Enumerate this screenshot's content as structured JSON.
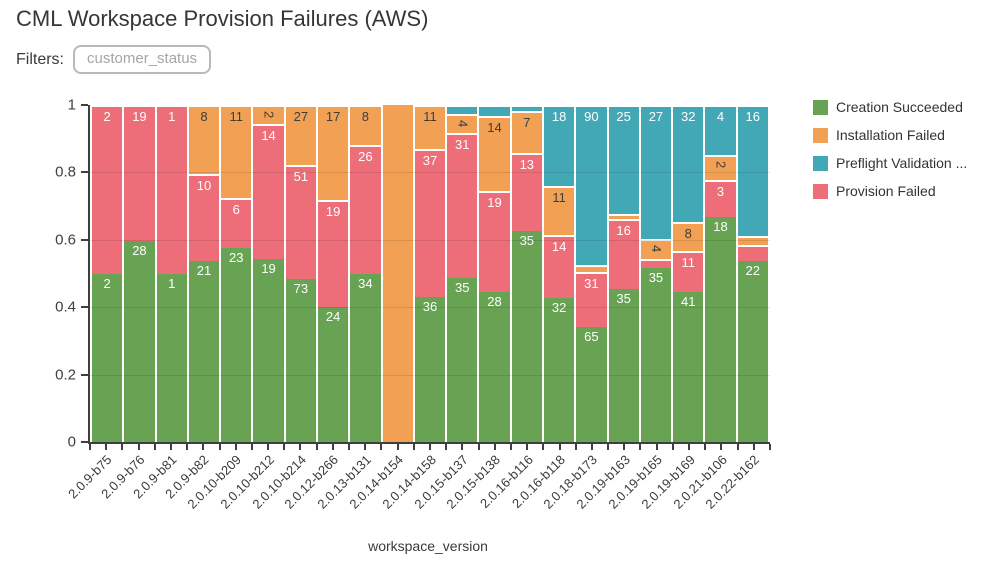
{
  "page": {
    "title": "CML Workspace Provision Failures (AWS)"
  },
  "filters": {
    "label": "Filters:",
    "value": "customer_status"
  },
  "chart_data": {
    "type": "bar",
    "stacked": true,
    "normalized": true,
    "title": "CML Workspace Provision Failures (AWS)",
    "xlabel": "workspace_version",
    "ylabel": "",
    "ylim": [
      0,
      1
    ],
    "grid": true,
    "legend_position": "right",
    "label_dark": "#3d3d3d",
    "label_light": "#ffffff",
    "y_ticks": [
      {
        "value": 0,
        "label": "0"
      },
      {
        "value": 0.2,
        "label": "0.2"
      },
      {
        "value": 0.4,
        "label": "0.4"
      },
      {
        "value": 0.6,
        "label": "0.6"
      },
      {
        "value": 0.8,
        "label": "0.8"
      },
      {
        "value": 1,
        "label": "1"
      }
    ],
    "legend": [
      {
        "key": "creation",
        "name": "Creation Succeeded",
        "color": "#67a353"
      },
      {
        "key": "installation",
        "name": "Installation Failed",
        "color": "#f2a154"
      },
      {
        "key": "preflight",
        "name": "Preflight Validation ...",
        "color": "#43a8b6"
      },
      {
        "key": "provision",
        "name": "Provision Failed",
        "color": "#ed6d78"
      }
    ],
    "series_order_bottom_to_top": [
      "creation",
      "provision",
      "installation",
      "preflight"
    ],
    "categories": [
      "2.0.9-b75",
      "2.0.9-b76",
      "2.0.9-b81",
      "2.0.9-b82",
      "2.0.10-b209",
      "2.0.10-b212",
      "2.0.10-b214",
      "2.0.12-b266",
      "2.0.13-b131",
      "2.0.14-b154",
      "2.0.14-b158",
      "2.0.15-b137",
      "2.0.15-b138",
      "2.0.16-b116",
      "2.0.16-b118",
      "2.0.18-b173",
      "2.0.19-b163",
      "2.0.19-b165",
      "2.0.19-b169",
      "2.0.21-b106",
      "2.0.22-b162"
    ],
    "bars": [
      {
        "version": "2.0.9-b75",
        "segments": [
          {
            "series": "creation",
            "count": 2,
            "frac": 0.5,
            "label": "2"
          },
          {
            "series": "provision",
            "count": 2,
            "frac": 0.5,
            "label": "2"
          }
        ]
      },
      {
        "version": "2.0.9-b76",
        "segments": [
          {
            "series": "creation",
            "count": 28,
            "frac": 0.596,
            "label": "28"
          },
          {
            "series": "provision",
            "count": 19,
            "frac": 0.404,
            "label": "19"
          }
        ]
      },
      {
        "version": "2.0.9-b81",
        "segments": [
          {
            "series": "creation",
            "count": 1,
            "frac": 0.5,
            "label": "1"
          },
          {
            "series": "provision",
            "count": 1,
            "frac": 0.5,
            "label": "1"
          }
        ]
      },
      {
        "version": "2.0.9-b82",
        "segments": [
          {
            "series": "creation",
            "count": 21,
            "frac": 0.538,
            "label": "21"
          },
          {
            "series": "provision",
            "count": 10,
            "frac": 0.256,
            "label": "10"
          },
          {
            "series": "installation",
            "count": 8,
            "frac": 0.205,
            "label": "8"
          }
        ]
      },
      {
        "version": "2.0.10-b209",
        "segments": [
          {
            "series": "creation",
            "count": 23,
            "frac": 0.575,
            "label": "23"
          },
          {
            "series": "provision",
            "count": 6,
            "frac": 0.15,
            "label": "6"
          },
          {
            "series": "installation",
            "count": 11,
            "frac": 0.275,
            "label": "11"
          }
        ]
      },
      {
        "version": "2.0.10-b212",
        "segments": [
          {
            "series": "creation",
            "count": 19,
            "frac": 0.543,
            "label": "19"
          },
          {
            "series": "provision",
            "count": 14,
            "frac": 0.4,
            "label": "14"
          },
          {
            "series": "installation",
            "count": 2,
            "frac": 0.057,
            "label": "2",
            "rotated": true
          }
        ]
      },
      {
        "version": "2.0.10-b214",
        "segments": [
          {
            "series": "creation",
            "count": 73,
            "frac": 0.483,
            "label": "73"
          },
          {
            "series": "provision",
            "count": 51,
            "frac": 0.338,
            "label": "51"
          },
          {
            "series": "installation",
            "count": 27,
            "frac": 0.179,
            "label": "27"
          }
        ]
      },
      {
        "version": "2.0.12-b266",
        "segments": [
          {
            "series": "creation",
            "count": 24,
            "frac": 0.4,
            "label": "24"
          },
          {
            "series": "provision",
            "count": 19,
            "frac": 0.317,
            "label": "19"
          },
          {
            "series": "installation",
            "count": 17,
            "frac": 0.283,
            "label": "17"
          }
        ]
      },
      {
        "version": "2.0.13-b131",
        "segments": [
          {
            "series": "creation",
            "count": 34,
            "frac": 0.5,
            "label": "34"
          },
          {
            "series": "provision",
            "count": 26,
            "frac": 0.382,
            "label": "26"
          },
          {
            "series": "installation",
            "count": 8,
            "frac": 0.118,
            "label": "8"
          }
        ]
      },
      {
        "version": "2.0.14-b154",
        "segments": [
          {
            "series": "installation",
            "count": null,
            "frac": 1.0,
            "label": ""
          }
        ]
      },
      {
        "version": "2.0.14-b158",
        "segments": [
          {
            "series": "creation",
            "count": 36,
            "frac": 0.429,
            "label": "36"
          },
          {
            "series": "provision",
            "count": 37,
            "frac": 0.44,
            "label": "37"
          },
          {
            "series": "installation",
            "count": 11,
            "frac": 0.131,
            "label": "11"
          }
        ]
      },
      {
        "version": "2.0.15-b137",
        "segments": [
          {
            "series": "creation",
            "count": 35,
            "frac": 0.486,
            "label": "35"
          },
          {
            "series": "provision",
            "count": 31,
            "frac": 0.431,
            "label": "31"
          },
          {
            "series": "installation",
            "count": 4,
            "frac": 0.056,
            "label": "4",
            "rotated": true
          },
          {
            "series": "preflight",
            "count": 2,
            "frac": 0.028,
            "label": ""
          }
        ]
      },
      {
        "version": "2.0.15-b138",
        "segments": [
          {
            "series": "creation",
            "count": 28,
            "frac": 0.444,
            "label": "28"
          },
          {
            "series": "provision",
            "count": 19,
            "frac": 0.302,
            "label": "19"
          },
          {
            "series": "installation",
            "count": 14,
            "frac": 0.222,
            "label": "14"
          },
          {
            "series": "preflight",
            "count": 2,
            "frac": 0.032,
            "label": ""
          }
        ]
      },
      {
        "version": "2.0.16-b116",
        "segments": [
          {
            "series": "creation",
            "count": 35,
            "frac": 0.625,
            "label": "35"
          },
          {
            "series": "provision",
            "count": 13,
            "frac": 0.232,
            "label": "13"
          },
          {
            "series": "installation",
            "count": 7,
            "frac": 0.125,
            "label": "7"
          },
          {
            "series": "preflight",
            "count": 1,
            "frac": 0.018,
            "label": ""
          }
        ]
      },
      {
        "version": "2.0.16-b118",
        "segments": [
          {
            "series": "creation",
            "count": 32,
            "frac": 0.427,
            "label": "32"
          },
          {
            "series": "provision",
            "count": 14,
            "frac": 0.187,
            "label": "14"
          },
          {
            "series": "installation",
            "count": 11,
            "frac": 0.147,
            "label": "11"
          },
          {
            "series": "preflight",
            "count": 18,
            "frac": 0.24,
            "label": "18"
          }
        ]
      },
      {
        "version": "2.0.18-b173",
        "segments": [
          {
            "series": "creation",
            "count": 65,
            "frac": 0.342,
            "label": "65"
          },
          {
            "series": "provision",
            "count": 31,
            "frac": 0.163,
            "label": "31"
          },
          {
            "series": "installation",
            "count": 4,
            "frac": 0.021,
            "label": ""
          },
          {
            "series": "preflight",
            "count": 90,
            "frac": 0.474,
            "label": "90"
          }
        ]
      },
      {
        "version": "2.0.19-b163",
        "segments": [
          {
            "series": "creation",
            "count": 35,
            "frac": 0.455,
            "label": "35"
          },
          {
            "series": "provision",
            "count": 16,
            "frac": 0.208,
            "label": "16"
          },
          {
            "series": "installation",
            "count": 1,
            "frac": 0.013,
            "label": ""
          },
          {
            "series": "preflight",
            "count": 25,
            "frac": 0.325,
            "label": "25"
          }
        ]
      },
      {
        "version": "2.0.19-b165",
        "segments": [
          {
            "series": "creation",
            "count": 35,
            "frac": 0.515,
            "label": "35"
          },
          {
            "series": "provision",
            "count": 2,
            "frac": 0.029,
            "label": ""
          },
          {
            "series": "installation",
            "count": 4,
            "frac": 0.059,
            "label": "4",
            "rotated": true
          },
          {
            "series": "preflight",
            "count": 27,
            "frac": 0.397,
            "label": "27"
          }
        ]
      },
      {
        "version": "2.0.19-b169",
        "segments": [
          {
            "series": "creation",
            "count": 41,
            "frac": 0.446,
            "label": "41"
          },
          {
            "series": "provision",
            "count": 11,
            "frac": 0.12,
            "label": "11"
          },
          {
            "series": "installation",
            "count": 8,
            "frac": 0.087,
            "label": "8"
          },
          {
            "series": "preflight",
            "count": 32,
            "frac": 0.348,
            "label": "32"
          }
        ]
      },
      {
        "version": "2.0.21-b106",
        "segments": [
          {
            "series": "creation",
            "count": 18,
            "frac": 0.667,
            "label": "18"
          },
          {
            "series": "provision",
            "count": 3,
            "frac": 0.111,
            "label": "3"
          },
          {
            "series": "installation",
            "count": 2,
            "frac": 0.074,
            "label": "2",
            "rotated": true
          },
          {
            "series": "preflight",
            "count": 4,
            "frac": 0.148,
            "label": "4"
          }
        ]
      },
      {
        "version": "2.0.22-b162",
        "segments": [
          {
            "series": "creation",
            "count": 22,
            "frac": 0.537,
            "label": "22"
          },
          {
            "series": "provision",
            "count": 2,
            "frac": 0.049,
            "label": ""
          },
          {
            "series": "installation",
            "count": 1,
            "frac": 0.024,
            "label": ""
          },
          {
            "series": "preflight",
            "count": 16,
            "frac": 0.39,
            "label": "16"
          }
        ]
      }
    ]
  }
}
